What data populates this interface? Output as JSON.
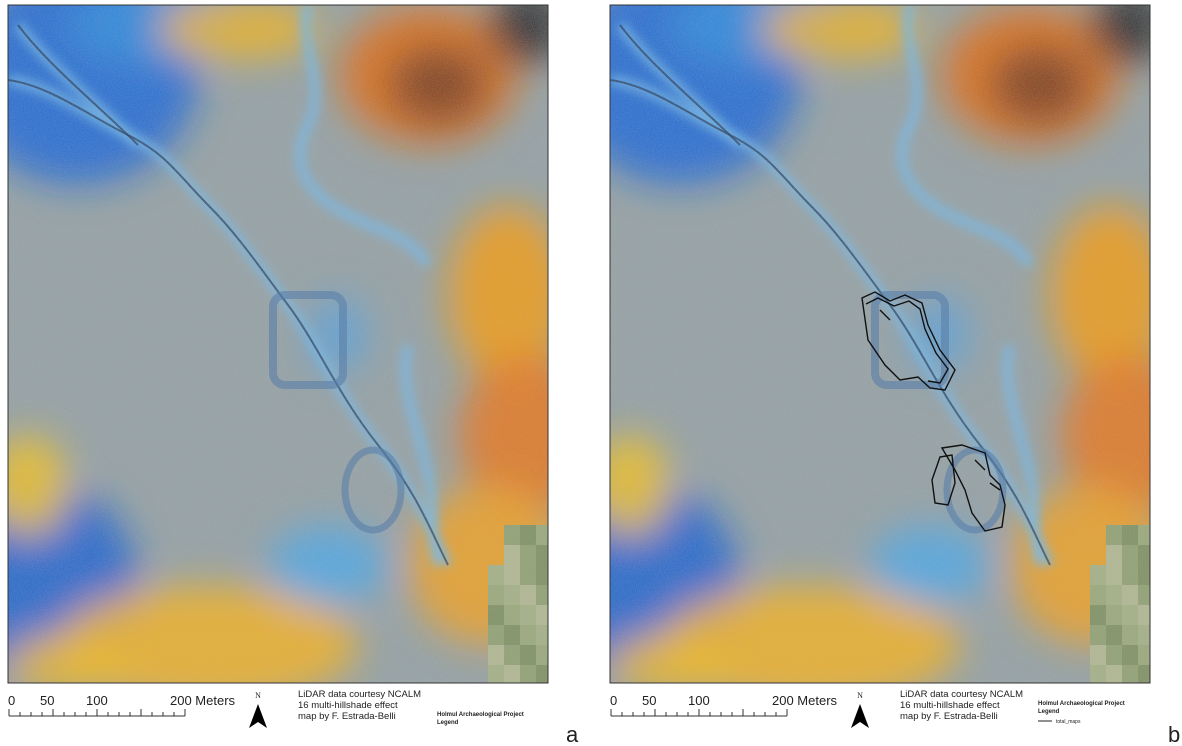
{
  "panels": [
    {
      "label": "a",
      "scale_bar": {
        "labels": [
          "0",
          "50",
          "100",
          "200 Meters"
        ]
      },
      "north": "N",
      "credits": [
        "LiDAR data courtesy NCALM",
        "16 multi-hillshade effect",
        "map by F. Estrada-Belli"
      ],
      "legend": {
        "title": "Holmul Archaeological Project",
        "subtitle": "Legend"
      }
    },
    {
      "label": "b",
      "scale_bar": {
        "labels": [
          "0",
          "50",
          "100",
          "200 Meters"
        ]
      },
      "north": "N",
      "credits": [
        "LiDAR data courtesy NCALM",
        "16 multi-hillshade effect",
        "map by F. Estrada-Belli"
      ],
      "legend": {
        "title": "Holmul Archaeological Project",
        "subtitle": "Legend",
        "items": [
          "total_maps"
        ]
      }
    }
  ]
}
